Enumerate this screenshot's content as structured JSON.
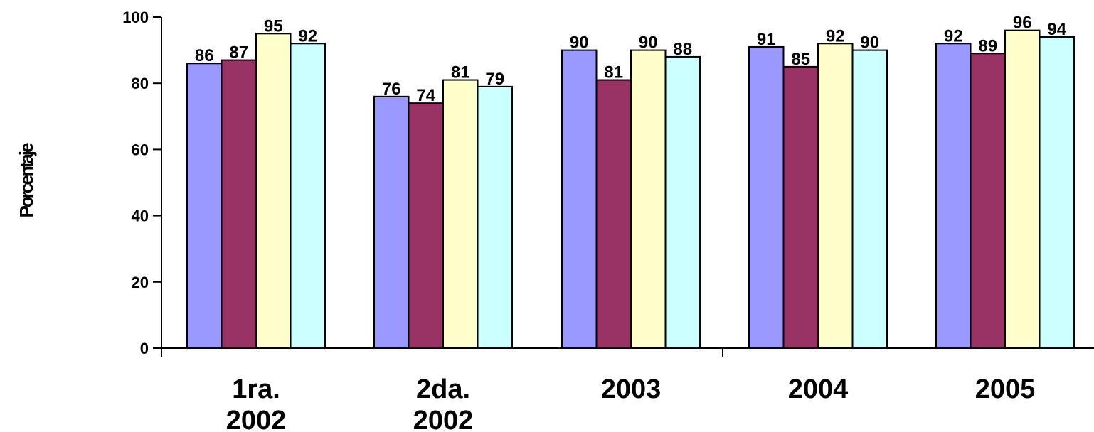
{
  "chart_data": {
    "type": "bar",
    "title": "",
    "xlabel": "",
    "ylabel": "Porcentaje",
    "ylim": [
      0,
      100
    ],
    "yticks": [
      0,
      20,
      40,
      60,
      80,
      100
    ],
    "grid": false,
    "legend": "none",
    "categories": [
      [
        "1ra.",
        "2002"
      ],
      [
        "2da.",
        "2002"
      ],
      [
        "2003"
      ],
      [
        "2004"
      ],
      [
        "2005"
      ]
    ],
    "series": [
      {
        "color": "#9999FF",
        "values": [
          86,
          76,
          90,
          91,
          92
        ]
      },
      {
        "color": "#993366",
        "values": [
          87,
          74,
          81,
          85,
          89
        ]
      },
      {
        "color": "#FFFFCC",
        "values": [
          95,
          81,
          90,
          92,
          96
        ]
      },
      {
        "color": "#CCFFFF",
        "values": [
          92,
          79,
          88,
          90,
          94
        ]
      }
    ]
  }
}
